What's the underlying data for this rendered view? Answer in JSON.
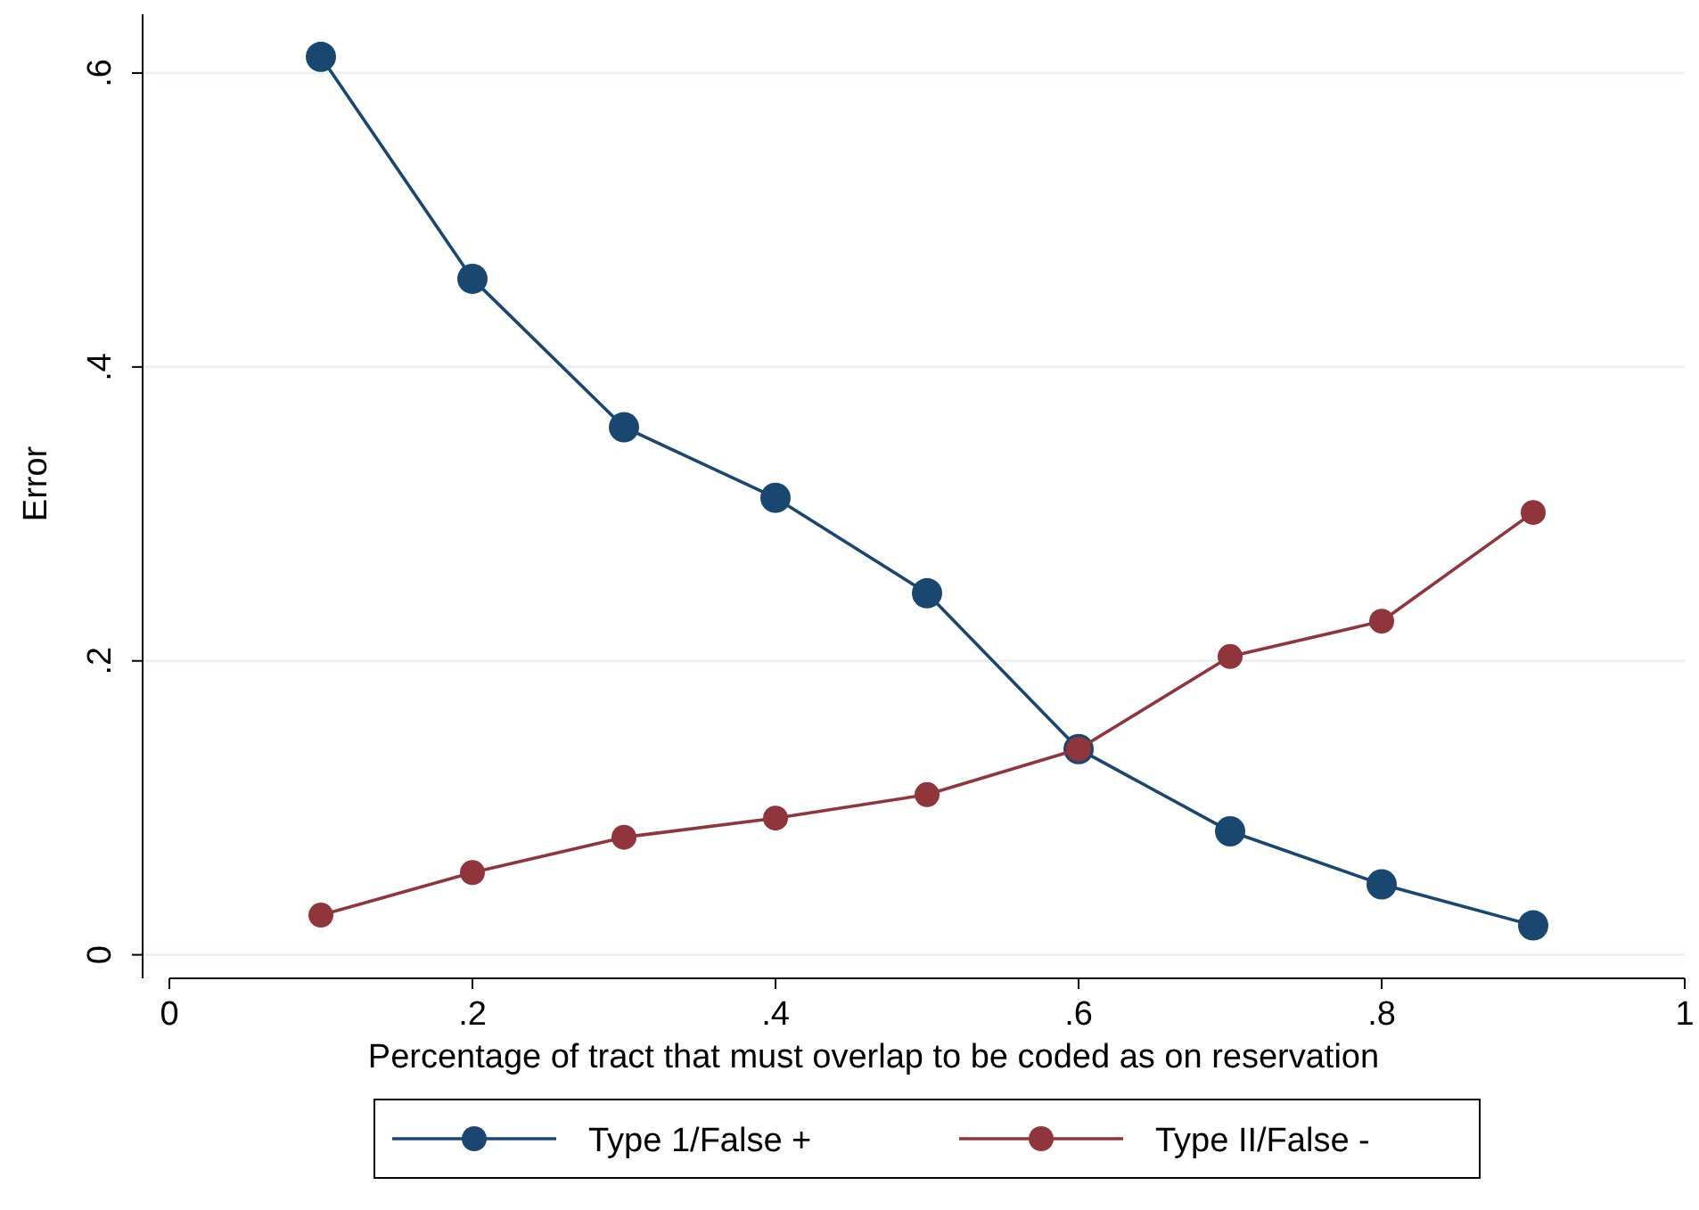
{
  "chart_data": {
    "type": "line",
    "xlabel": "Percentage of tract that must overlap to be coded as on reservation",
    "ylabel": "Error",
    "x": [
      0.1,
      0.2,
      0.3,
      0.4,
      0.5,
      0.6,
      0.7,
      0.8,
      0.9
    ],
    "series": [
      {
        "name": "Type 1/False +",
        "color": "#1a476f",
        "values": [
          0.611,
          0.46,
          0.359,
          0.311,
          0.246,
          0.14,
          0.084,
          0.048,
          0.02
        ]
      },
      {
        "name": "Type II/False -",
        "color": "#90353b",
        "values": [
          0.027,
          0.056,
          0.08,
          0.093,
          0.109,
          0.14,
          0.203,
          0.227,
          0.301
        ]
      }
    ],
    "xlim": [
      0,
      1
    ],
    "xticks": [
      0,
      {
        "value": 0.2,
        "label": ".2"
      },
      {
        "value": 0.4,
        "label": ".4"
      },
      {
        "value": 0.6,
        "label": ".6"
      },
      {
        "value": 0.8,
        "label": ".8"
      },
      1
    ],
    "ylim": [
      -0.016,
      0.64
    ],
    "yticks": [
      0,
      {
        "value": 0.2,
        "label": ".2"
      },
      {
        "value": 0.4,
        "label": ".4"
      },
      {
        "value": 0.6,
        "label": ".6"
      }
    ],
    "grid": "y",
    "legend": "bottom",
    "marker": "circle",
    "line_style": "solid"
  }
}
